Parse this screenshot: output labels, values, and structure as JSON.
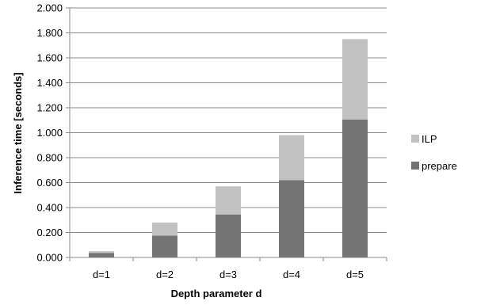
{
  "chart_data": {
    "type": "bar",
    "stacked": true,
    "title": "",
    "xlabel": "Depth parameter d",
    "ylabel": "Inference time [seconds]",
    "categories": [
      "d=1",
      "d=2",
      "d=3",
      "d=4",
      "d=5"
    ],
    "series": [
      {
        "name": "prepare",
        "color": "#747474",
        "values": [
          0.035,
          0.175,
          0.345,
          0.62,
          1.105
        ]
      },
      {
        "name": "ILP",
        "color": "#c2c2c2",
        "values": [
          0.015,
          0.105,
          0.225,
          0.36,
          0.645
        ]
      }
    ],
    "ylim": [
      0,
      2.0
    ],
    "yticks": [
      "0.000",
      "0.200",
      "0.400",
      "0.600",
      "0.800",
      "1.000",
      "1.200",
      "1.400",
      "1.600",
      "1.800",
      "2.000"
    ],
    "grid": true,
    "legend_position": "right",
    "legend_order": [
      "ILP",
      "prepare"
    ]
  }
}
